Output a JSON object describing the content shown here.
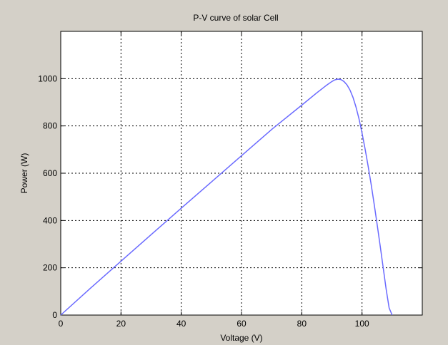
{
  "chart_data": {
    "type": "line",
    "title": "P-V curve of solar Cell",
    "xlabel": "Voltage (V)",
    "ylabel": "Power (W)",
    "xlim": [
      0,
      120
    ],
    "ylim": [
      0,
      1200
    ],
    "xticks": [
      0,
      20,
      40,
      60,
      80,
      100
    ],
    "yticks": [
      0,
      200,
      400,
      600,
      800,
      1000
    ],
    "grid": true,
    "series": [
      {
        "color": "#6a6aff",
        "x": [
          0,
          10,
          20,
          30,
          40,
          50,
          60,
          70,
          80,
          85,
          88,
          90,
          91,
          92,
          93,
          94,
          95,
          96,
          97,
          98,
          99,
          100,
          101,
          102,
          103,
          104,
          105,
          106,
          107,
          108,
          109,
          110
        ],
        "y": [
          0,
          115,
          228,
          340,
          452,
          563,
          674,
          785,
          888,
          940,
          970,
          988,
          995,
          998,
          996,
          988,
          974,
          952,
          921,
          880,
          830,
          770,
          704,
          632,
          555,
          472,
          385,
          295,
          203,
          110,
          30,
          0
        ]
      }
    ]
  }
}
